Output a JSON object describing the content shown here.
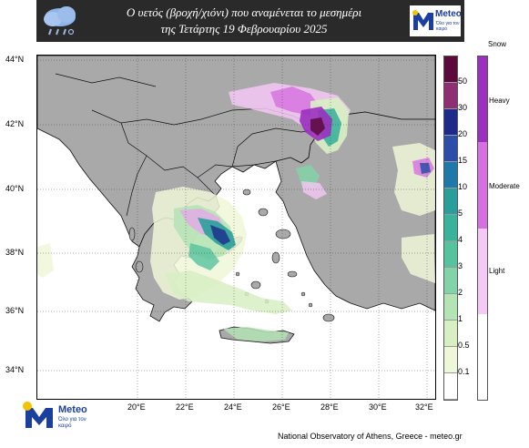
{
  "header": {
    "title_line1": "Ο υετός (βροχή/χιόνι) που αναμένεται το μεσημέρι",
    "title_line2": "της Τετάρτης 19 Φεβρουαρίου  2025",
    "brand_name": "Meteo",
    "brand_tagline": "Όλο για τον καιρό"
  },
  "map": {
    "lat_ticks": [
      "44°N",
      "42°N",
      "40°N",
      "38°N",
      "36°N",
      "34°N"
    ],
    "lon_ticks": [
      "20°E",
      "22°E",
      "24°E",
      "26°E",
      "28°E",
      "30°E",
      "32°E"
    ]
  },
  "legend": {
    "rain_labels": [
      "50",
      "30",
      "20",
      "15",
      "10",
      "5",
      "4",
      "3",
      "2",
      "1",
      "0.5",
      "0.1"
    ],
    "rain_colors": [
      "#5c0a3c",
      "#8e2f74",
      "#1d2a8a",
      "#2d4ea8",
      "#1f78a8",
      "#2a9e9a",
      "#3bb39a",
      "#56c29e",
      "#82d3a8",
      "#b4e3b4",
      "#d8efc4",
      "#eef7d8",
      "#ffffff"
    ],
    "snow_title": "Snow",
    "snow_labels": [
      "Heavy",
      "Moderate",
      "Light"
    ],
    "snow_colors": [
      "#9b2fc0",
      "#d66fe0",
      "#f5c8f5"
    ]
  },
  "footer": {
    "brand_name": "Meteo",
    "brand_tagline": "Όλο για τον καιρό",
    "credit": "National Observatory of Athens, Greece - meteo.gr"
  }
}
